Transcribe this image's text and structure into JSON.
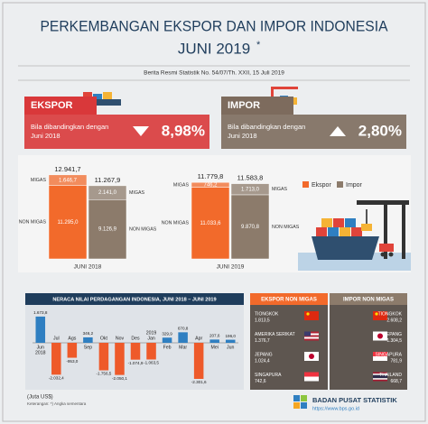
{
  "header": {
    "title": "PERKEMBANGAN EKSPOR DAN IMPOR INDONESIA",
    "title2": "JUNI 2019",
    "note_mark": "*",
    "subtitle": "Berita Resmi Statistik No. 54/07/Th. XXII, 15 Juli 2019"
  },
  "summary": [
    {
      "label": "EKSPOR",
      "text_line1": "Bila dibandingkan dengan",
      "text_line2": "Juni 2018",
      "change": "8,98%",
      "direction": "down",
      "color": "#d9383a"
    },
    {
      "label": "IMPOR",
      "text_line1": "Bila dibandingkan dengan",
      "text_line2": "Juni 2018",
      "change": "2,80%",
      "direction": "up",
      "color": "#7d6b5d"
    }
  ],
  "chart_data": [
    {
      "type": "stacked_bar",
      "categories": [
        "JUNI 2018",
        "JUNI 2019"
      ],
      "series": [
        {
          "name": "Ekspor",
          "color": "#f26a2b",
          "totals": [
            12941.7,
            11779.8
          ],
          "totals_labels": [
            "12.941,7",
            "11.779,8"
          ],
          "segments": [
            {
              "name": "NON MIGAS",
              "values": [
                11295.0,
                11033.6
              ],
              "value_labels": [
                "11.295,0",
                "11.033,6"
              ]
            },
            {
              "name": "MIGAS",
              "values": [
                1646.7,
                746.2
              ],
              "value_labels": [
                "1.646,7",
                "746,2"
              ]
            }
          ]
        },
        {
          "name": "Impor",
          "color": "#8c7b6b",
          "totals": [
            11267.9,
            11583.8
          ],
          "totals_labels": [
            "11.267,9",
            "11.583,8"
          ],
          "segments": [
            {
              "name": "NON MIGAS",
              "values": [
                9126.9,
                9870.8
              ],
              "value_labels": [
                "9.126,9",
                "9.870,8"
              ]
            },
            {
              "name": "MIGAS",
              "values": [
                2141.0,
                1713.0
              ],
              "value_labels": [
                "2.141,0",
                "1.713,0"
              ]
            }
          ]
        }
      ]
    },
    {
      "type": "bar",
      "title": "NERACA NILAI PERDAGANGAN INDONESIA, JUNI 2018 – JUNI 2019",
      "categories": [
        "Jun",
        "Jul",
        "Ags",
        "Sep",
        "Okt",
        "Nov",
        "Des",
        "Jan",
        "Feb",
        "Mar",
        "Apr",
        "Mei",
        "Jun"
      ],
      "category_years": [
        "2018",
        null,
        null,
        null,
        null,
        null,
        null,
        "2019",
        null,
        null,
        null,
        null,
        null
      ],
      "values": [
        1673.8,
        -2032.4,
        -953.0,
        346.2,
        -1756.5,
        -2050.1,
        -1074.9,
        -1063.5,
        329.9,
        670.8,
        -2301.6,
        207.6,
        196.0
      ],
      "value_labels": [
        "1.673,8",
        "-2.032,4",
        "-953,0",
        "346,2",
        "-1.756,5",
        "-2.050,1",
        "-1.074,9",
        "-1.063,5",
        "329,9",
        "670,8",
        "-2.301,6",
        "207,6",
        "196,0"
      ],
      "positive_color": "#2f7fc1",
      "negative_color": "#ee5a2a"
    }
  ],
  "tables": [
    {
      "title": "EKSPOR NON MIGAS",
      "color": "#f26a2b",
      "rows": [
        {
          "country": "TIONGKOK",
          "value": "1.813,5"
        },
        {
          "country": "AMERIKA SERIKAT",
          "value": "1.376,7"
        },
        {
          "country": "JEPANG",
          "value": "1.024,4"
        },
        {
          "country": "SINGAPURA",
          "value": "742,6"
        }
      ]
    },
    {
      "title": "IMPOR NON MIGAS",
      "color": "#8c7b6b",
      "rows": [
        {
          "country": "TIONGKOK",
          "value": "2.608,2"
        },
        {
          "country": "JEPANG",
          "value": "1.304,5"
        },
        {
          "country": "SINGAPURA",
          "value": "781,9"
        },
        {
          "country": "THAILAND",
          "value": "668,7"
        }
      ]
    }
  ],
  "footer": {
    "unit": "(Juta US$)",
    "note": "Keterangan: *) Angka sementara",
    "org": "BADAN PUSAT STATISTIK",
    "url": "https://www.bps.go.id"
  }
}
